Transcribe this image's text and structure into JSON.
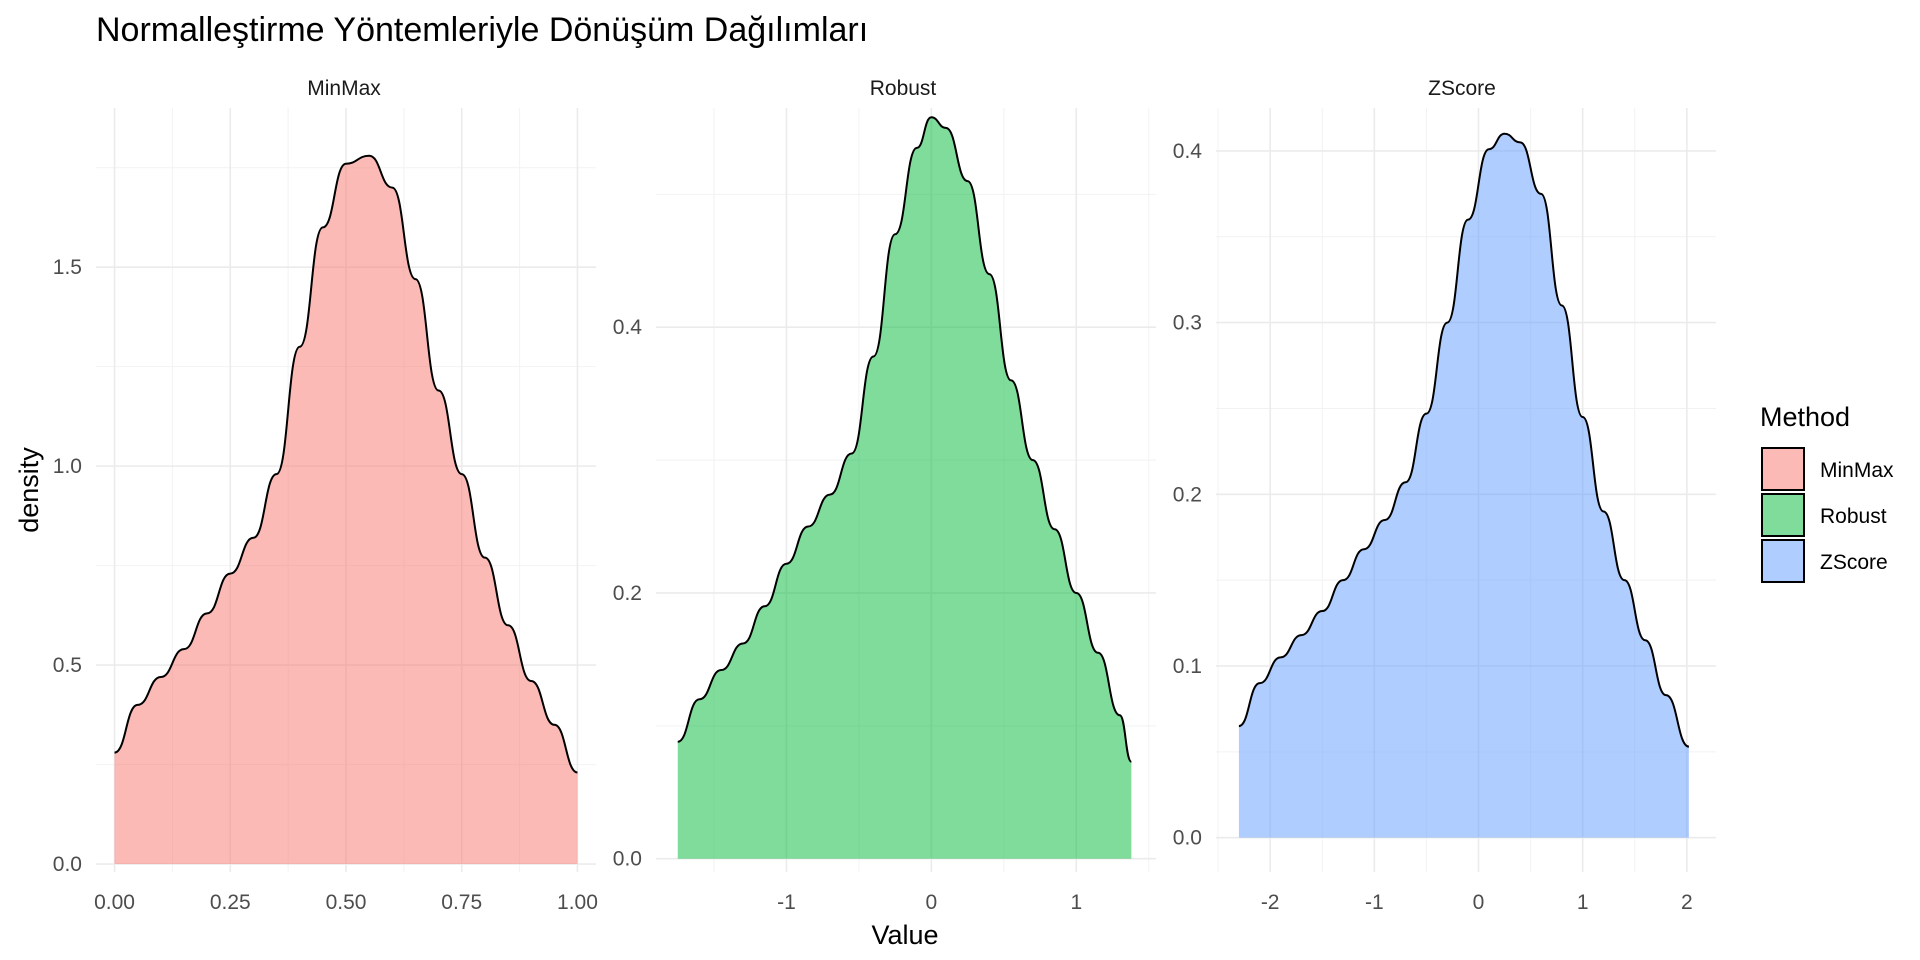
{
  "chart_data": {
    "type": "area",
    "title": "Normalleştirme Yöntemleriyle Dönüşüm Dağılımları",
    "xlabel": "Value",
    "ylabel": "density",
    "legend": {
      "title": "Method",
      "position": "right"
    },
    "facets": [
      {
        "name": "MinMax",
        "color": "#F8766D",
        "xlim": [
          -0.04,
          1.04
        ],
        "ylim": [
          -0.02,
          1.9
        ],
        "x_ticks": [
          "0.00",
          "0.25",
          "0.50",
          "0.75",
          "1.00"
        ],
        "x_tick_values": [
          0,
          0.25,
          0.5,
          0.75,
          1.0
        ],
        "y_ticks": [
          "0.0",
          "0.5",
          "1.0",
          "1.5"
        ],
        "y_tick_values": [
          0,
          0.5,
          1.0,
          1.5
        ],
        "x": [
          0.0,
          0.05,
          0.1,
          0.15,
          0.2,
          0.25,
          0.3,
          0.35,
          0.4,
          0.45,
          0.5,
          0.55,
          0.6,
          0.65,
          0.7,
          0.75,
          0.8,
          0.85,
          0.9,
          0.95,
          1.0
        ],
        "y": [
          0.28,
          0.4,
          0.47,
          0.54,
          0.63,
          0.73,
          0.82,
          0.98,
          1.3,
          1.6,
          1.76,
          1.78,
          1.7,
          1.47,
          1.19,
          0.98,
          0.77,
          0.6,
          0.46,
          0.35,
          0.23
        ]
      },
      {
        "name": "Robust",
        "color": "#00BA38",
        "xlim": [
          -1.9,
          1.55
        ],
        "ylim": [
          -0.01,
          0.565
        ],
        "x_ticks": [
          "-1",
          "0",
          "1"
        ],
        "x_tick_values": [
          -1,
          0,
          1
        ],
        "y_ticks": [
          "0.0",
          "0.2",
          "0.4"
        ],
        "y_tick_values": [
          0,
          0.2,
          0.4
        ],
        "x": [
          -1.75,
          -1.6,
          -1.45,
          -1.3,
          -1.15,
          -1.0,
          -0.85,
          -0.7,
          -0.55,
          -0.4,
          -0.25,
          -0.1,
          0.0,
          0.1,
          0.25,
          0.4,
          0.55,
          0.7,
          0.85,
          1.0,
          1.15,
          1.3,
          1.38
        ],
        "y": [
          0.088,
          0.12,
          0.142,
          0.162,
          0.19,
          0.222,
          0.25,
          0.274,
          0.305,
          0.378,
          0.47,
          0.535,
          0.558,
          0.55,
          0.51,
          0.44,
          0.36,
          0.3,
          0.248,
          0.2,
          0.155,
          0.108,
          0.073
        ]
      },
      {
        "name": "ZScore",
        "color": "#619CFF",
        "xlim": [
          -2.52,
          2.28
        ],
        "ylim": [
          -0.02,
          0.425
        ],
        "x_ticks": [
          "-2",
          "-1",
          "0",
          "1",
          "2"
        ],
        "x_tick_values": [
          -2,
          -1,
          0,
          1,
          2
        ],
        "y_ticks": [
          "0.0",
          "0.1",
          "0.2",
          "0.3",
          "0.4"
        ],
        "y_tick_values": [
          0,
          0.1,
          0.2,
          0.3,
          0.4
        ],
        "x": [
          -2.3,
          -2.1,
          -1.9,
          -1.7,
          -1.5,
          -1.3,
          -1.1,
          -0.9,
          -0.7,
          -0.5,
          -0.3,
          -0.1,
          0.1,
          0.25,
          0.4,
          0.6,
          0.8,
          1.0,
          1.2,
          1.4,
          1.6,
          1.8,
          2.02
        ],
        "y": [
          0.065,
          0.09,
          0.105,
          0.118,
          0.132,
          0.15,
          0.168,
          0.185,
          0.207,
          0.247,
          0.3,
          0.36,
          0.401,
          0.41,
          0.405,
          0.375,
          0.31,
          0.245,
          0.19,
          0.15,
          0.115,
          0.083,
          0.053
        ]
      }
    ]
  }
}
